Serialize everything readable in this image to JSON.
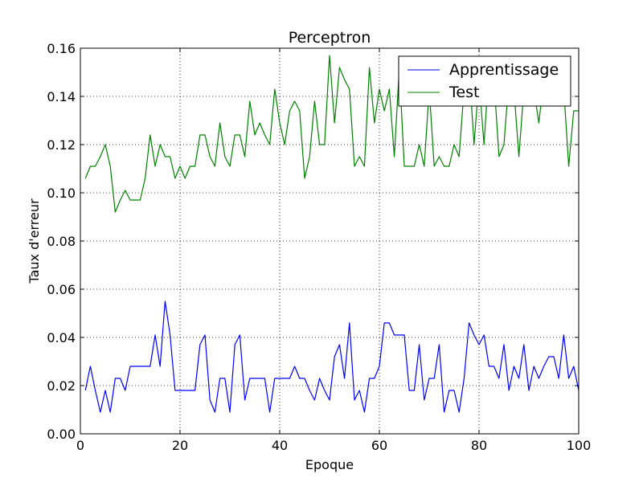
{
  "chart_data": {
    "type": "line",
    "title": "Perceptron",
    "xlabel": "Epoque",
    "ylabel": "Taux d'erreur",
    "xlim": [
      0,
      100
    ],
    "ylim": [
      0,
      0.16
    ],
    "xticks": [
      0,
      20,
      40,
      60,
      80,
      100
    ],
    "yticks": [
      0.0,
      0.02,
      0.04,
      0.06,
      0.08,
      0.1,
      0.12,
      0.14,
      0.16
    ],
    "xtick_labels": [
      "0",
      "20",
      "40",
      "60",
      "80",
      "100"
    ],
    "ytick_labels": [
      "0.00",
      "0.02",
      "0.04",
      "0.06",
      "0.08",
      "0.10",
      "0.12",
      "0.14",
      "0.16"
    ],
    "grid": true,
    "legend_position": "top-right",
    "series": [
      {
        "name": "Apprentissage",
        "color": "#0000ff",
        "x": [
          1,
          2,
          3,
          4,
          5,
          6,
          7,
          8,
          9,
          10,
          11,
          12,
          13,
          14,
          15,
          16,
          17,
          18,
          19,
          20,
          21,
          22,
          23,
          24,
          25,
          26,
          27,
          28,
          29,
          30,
          31,
          32,
          33,
          34,
          35,
          36,
          37,
          38,
          39,
          40,
          41,
          42,
          43,
          44,
          45,
          46,
          47,
          48,
          49,
          50,
          51,
          52,
          53,
          54,
          55,
          56,
          57,
          58,
          59,
          60,
          61,
          62,
          63,
          64,
          65,
          66,
          67,
          68,
          69,
          70,
          71,
          72,
          73,
          74,
          75,
          76,
          77,
          78,
          79,
          80,
          81,
          82,
          83,
          84,
          85,
          86,
          87,
          88,
          89,
          90,
          91,
          92,
          93,
          94,
          95,
          96,
          97,
          98,
          99,
          100
        ],
        "y": [
          0.018,
          0.028,
          0.018,
          0.009,
          0.018,
          0.009,
          0.023,
          0.023,
          0.018,
          0.028,
          0.028,
          0.028,
          0.028,
          0.028,
          0.041,
          0.028,
          0.055,
          0.041,
          0.018,
          0.018,
          0.018,
          0.018,
          0.018,
          0.037,
          0.041,
          0.014,
          0.009,
          0.023,
          0.023,
          0.009,
          0.037,
          0.041,
          0.014,
          0.023,
          0.023,
          0.023,
          0.023,
          0.009,
          0.023,
          0.023,
          0.023,
          0.023,
          0.028,
          0.023,
          0.023,
          0.018,
          0.014,
          0.023,
          0.018,
          0.014,
          0.032,
          0.037,
          0.023,
          0.046,
          0.014,
          0.018,
          0.009,
          0.023,
          0.023,
          0.028,
          0.046,
          0.046,
          0.041,
          0.041,
          0.041,
          0.018,
          0.018,
          0.037,
          0.014,
          0.023,
          0.023,
          0.037,
          0.009,
          0.018,
          0.018,
          0.009,
          0.023,
          0.046,
          0.041,
          0.037,
          0.041,
          0.028,
          0.028,
          0.023,
          0.037,
          0.018,
          0.028,
          0.023,
          0.037,
          0.018,
          0.028,
          0.023,
          0.028,
          0.032,
          0.032,
          0.023,
          0.041,
          0.023,
          0.028,
          0.018
        ]
      },
      {
        "name": "Test",
        "color": "#008000",
        "x": [
          1,
          2,
          3,
          4,
          5,
          6,
          7,
          8,
          9,
          10,
          11,
          12,
          13,
          14,
          15,
          16,
          17,
          18,
          19,
          20,
          21,
          22,
          23,
          24,
          25,
          26,
          27,
          28,
          29,
          30,
          31,
          32,
          33,
          34,
          35,
          36,
          37,
          38,
          39,
          40,
          41,
          42,
          43,
          44,
          45,
          46,
          47,
          48,
          49,
          50,
          51,
          52,
          53,
          54,
          55,
          56,
          57,
          58,
          59,
          60,
          61,
          62,
          63,
          64,
          65,
          66,
          67,
          68,
          69,
          70,
          71,
          72,
          73,
          74,
          75,
          76,
          77,
          78,
          79,
          80,
          81,
          82,
          83,
          84,
          85,
          86,
          87,
          88,
          89,
          90,
          91,
          92,
          93,
          94,
          95,
          96,
          97,
          98,
          99,
          100
        ],
        "y": [
          0.106,
          0.111,
          0.111,
          0.115,
          0.12,
          0.111,
          0.092,
          0.097,
          0.101,
          0.097,
          0.097,
          0.097,
          0.106,
          0.124,
          0.111,
          0.12,
          0.115,
          0.115,
          0.106,
          0.111,
          0.106,
          0.111,
          0.111,
          0.124,
          0.124,
          0.115,
          0.111,
          0.129,
          0.115,
          0.111,
          0.124,
          0.124,
          0.115,
          0.138,
          0.124,
          0.129,
          0.124,
          0.12,
          0.143,
          0.129,
          0.12,
          0.134,
          0.138,
          0.134,
          0.106,
          0.115,
          0.138,
          0.12,
          0.12,
          0.157,
          0.129,
          0.152,
          0.147,
          0.143,
          0.111,
          0.115,
          0.111,
          0.152,
          0.129,
          0.143,
          0.134,
          0.143,
          0.115,
          0.152,
          0.111,
          0.111,
          0.111,
          0.12,
          0.111,
          0.143,
          0.111,
          0.115,
          0.111,
          0.111,
          0.12,
          0.115,
          0.143,
          0.152,
          0.12,
          0.147,
          0.12,
          0.152,
          0.147,
          0.115,
          0.12,
          0.147,
          0.143,
          0.115,
          0.143,
          0.143,
          0.143,
          0.129,
          0.147,
          0.147,
          0.143,
          0.147,
          0.143,
          0.111,
          0.134,
          0.134
        ]
      }
    ]
  }
}
